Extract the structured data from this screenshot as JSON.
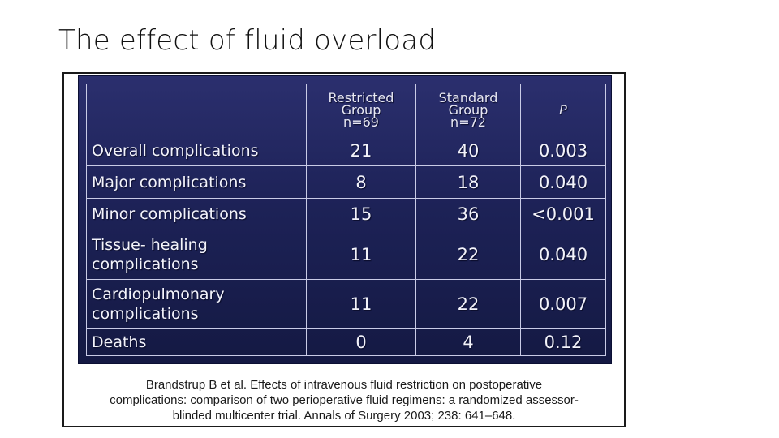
{
  "slide": {
    "title": "The effect of fluid overload"
  },
  "table": {
    "headers": {
      "label": "",
      "restricted": [
        "Restricted",
        "Group",
        "n=69"
      ],
      "standard": [
        "Standard",
        "Group",
        "n=72"
      ],
      "p": "P"
    },
    "rows": [
      {
        "label": [
          "Overall complications"
        ],
        "restricted": "21",
        "standard": "40",
        "p": "0.003"
      },
      {
        "label": [
          "Major complications"
        ],
        "restricted": "8",
        "standard": "18",
        "p": "0.040"
      },
      {
        "label": [
          "Minor complications"
        ],
        "restricted": "15",
        "standard": "36",
        "p": "<0.001"
      },
      {
        "label": [
          "Tissue- healing",
          "complications"
        ],
        "restricted": "11",
        "standard": "22",
        "p": "0.040"
      },
      {
        "label": [
          "Cardiopulmonary",
          "complications"
        ],
        "restricted": "11",
        "standard": "22",
        "p": "0.007"
      },
      {
        "label": [
          "Deaths"
        ],
        "restricted": "0",
        "standard": "4",
        "p": "0.12"
      }
    ]
  },
  "citation": {
    "lines": [
      "Brandstrup B et al. Effects of intravenous fluid restriction on postoperative",
      "complications: comparison of two perioperative fluid regimens: a randomized assessor-",
      "blinded multicenter trial. Annals of Surgery 2003; 238: 641–648."
    ]
  },
  "colors": {
    "table_background": "#1d2257",
    "table_text": "#f3f3fb",
    "grid_lines": "#c9cbe6"
  }
}
